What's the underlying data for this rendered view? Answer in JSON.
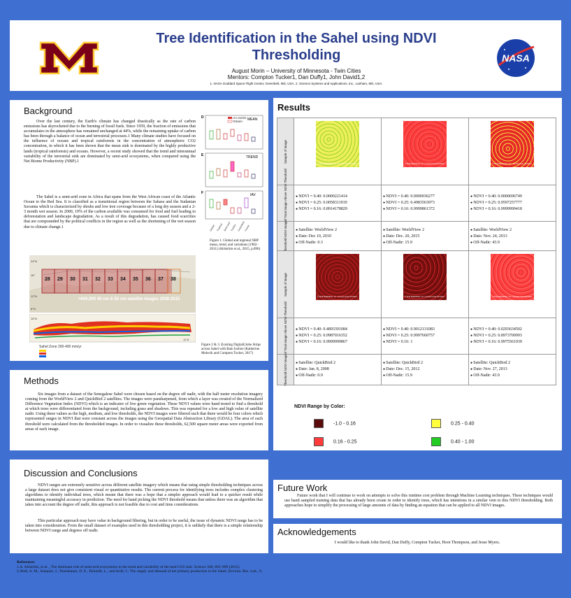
{
  "header": {
    "title": "Tree Identification in the Sahel using NDVI Thresholding",
    "author": "August Morin – University of Minnesota - Twin Cities",
    "mentors": "Mentors: Compton Tucker1, Dan Duffy1, John David1,2",
    "affiliations": "1.          NASA Goddard Space Flight Center, Greenbelt, MD, USA. 2. Science Systems and Applications, Inc., Lanham, MD, USA.",
    "logo_left": "M",
    "logo_right": "NASA"
  },
  "background": {
    "heading": "Background",
    "p1": "Over the last century, the Earth's climate has changed drastically as the rate of carbon emissions has skyrocketed due to the burning of fossil fuels. Since 1959, the fraction of emissions that accumulates in the atmosphere has remained unchanged at 44%, while the remaining uptake of carbon has been through a balance of ocean and terrestrial processes.1 Many climate studies have focused on the influence of oceans and tropical rainforests in the concentration of atmospheric CO2 concentration, in which it has been shown that the mean sink is dominated by the highly productive lands (tropical rainforests) and oceans. However, a recent study showed that the trend and interannual variability of the terrestrial sink are dominated by semi-arid ecosystems, when compared using the Net Biome Productivity (NBP).1",
    "p2": "The Sahel is a semi-arid zone in Africa that spans from the West African coast of the Atlantic Ocean to the Red Sea. It is classified as a transitional region between the Sahara and the Sudanian Savanna which is characterized by shrubs and low tree coverage because of a long dry season and a 2-3 month wet season. In 2000, 19% of the carbon available was consumed for food and fuel leading to deforestation and landscape degradation. As a result of this degradation, has caused food scarcities that are compounded by the political conflicts in the region as well as the shortening of the wet season due to climate change.1",
    "fig1_labels": {
      "d": "D",
      "mean": "MEAN",
      "e": "E",
      "trend": "TREND",
      "f": "F",
      "iav": "IAV",
      "leg1": "LPJ-GUESS",
      "leg2": "TRENDY"
    },
    "fig1_caption": "Figure 1. Global and regional NBP mean, trend, and variations (1982–2011) (Ahlström et al., 2015, p.896)",
    "strip_numbers": [
      "28",
      "29",
      "30",
      "31",
      "32",
      "33",
      "34",
      "35",
      "36",
      "37",
      "38"
    ],
    "strip_label": ">600,000 40 cm & 50 cm satellite images 2008-2015",
    "zone_label": "Sahel Zone 200-400 mm/yr",
    "lat_labels": [
      "24°N",
      "16°",
      "12°N",
      "8°N",
      "16°N",
      "12 N"
    ],
    "fig2_caption": "Figure 2 & 3. Existing DigitalGlobe Strips across Sahel with Rain Isoline (Katherine Melocik and Compton Tucker, 2017)"
  },
  "methods": {
    "heading": "Methods",
    "text": "Six images from a dataset of the Senegalese Sahel were chosen based on the degree off nadir, with the half meter resolution imagery coming from the WorldView 2 and QuickBird 2 satellites. The images were pansharpened, from which a layer was created of the Normalized Difference Vegetation Index (NDVI) which is an indicator of live green vegetation. These NDVI values were hand tested to find a threshold at which trees were differentiated from the background, including grass and shadows. This was repeated for a low and high value of satellite nadir. Using these values as the high, medium, and low thresholds, the NDVI images were filtered such that there would be four colors which represented ranges in NDVI that were constant across the images using the Geospatial Data Abstraction Library (GDAL). The area of each threshold were calculated from the thresholded images. In order to visualize these thresholds, 62,500 square meter areas were exported from areas of each image."
  },
  "discussion": {
    "heading": "Discussion and Conclusions",
    "p1": "NDVI ranges are extremely sensitive across different satellite imagery which means that using simple thresholding techniques across a large dataset does not give consistent visual or quantitative results. The current process for identifying trees includes complex clustering algorithms to identify individual trees, which meant that there was a hope that a simpler approach would lead to a quicker result while maintaining meaningful accuracy in prediction. The need for hand picking the NDVI threshold means that unless there was an algorithm that takes into account the degree off nadir, this approach is not feasible due to cost and time considerations",
    "p2": "This particular approach may have value in background filtering, but in order to be useful, the issue of dynamic NDVI range has to be taken into consideration. From the small dataset of examples used in this thresholding project, it is unlikely that there is a simple relationship between NDVI range and degrees off nadir."
  },
  "references": {
    "heading": "References",
    "items": [
      "1.A. Ahlström, et al. , The dominant role of semi-arid ecosystems in the trend and variability of the land CO2 sink. Science 348, 895–899 (2015).",
      "2.Abdi, A. M., Seaquist, J., Tenenbaum, D. E., Eklundh, L., and Ardö, J.: The supply and demand of net primary production in the Sahel, Environ. Res. Lett., 9,"
    ]
  },
  "results": {
    "heading": "Results",
    "row_labels": [
      "Sample of Image",
      "Percentage of Total Image Above NDVI Threshold",
      "Threshold NDVI Image",
      "Sample of Image",
      "Percentage of Total Image Above NDVI Threshold",
      "Threshold NDVI Image"
    ],
    "watermark": "© 2016 DigitalGlobe, Inc. Licensed under NextView",
    "percent_rows": [
      [
        [
          "NDVI = 0.40: 0.0000221414",
          "NDVI = 0.25: 0.0058311919",
          "NDVI = 0.16: 0.8914178829"
        ],
        [
          "NDVI = 0.40: 0.0000936277",
          "NDVI = 0.25: 0.4983563973",
          "NDVI = 0.16: 0.9999861372"
        ],
        [
          "NDVI = 0.40: 0.0000696749",
          "NDVI = 0.25: 0.9597257777",
          "NDVI = 0.16: 0.9999999418"
        ]
      ],
      [
        [
          "NDVI = 0.40: 0.4893391084",
          "NDVI = 0.25: 0.9987016352",
          "NDVI = 0.16: 0.9999999867"
        ],
        [
          "NDVI = 0.40: 0.9012131083",
          "NDVI = 0.25: 0.9997660757",
          "NDVI = 0.16: 1"
        ],
        [
          "NDVI = 0.40: 0.0293634502",
          "NDVI = 0.25: 0.8973700993",
          "NDVI = 0.16: 0.9975561939"
        ]
      ]
    ],
    "meta_rows": [
      [
        [
          "Satellite: WorldView 2",
          "Date: Dec 10, 2010",
          "Off-Nadir: 0.3"
        ],
        [
          "Satellite: WorldView 2",
          "Date: Dec. 20, 2015",
          "Off-Nadir: 15.9"
        ],
        [
          "Satellite: WorldView 2",
          "Date: Nov. 24, 2013",
          "Off-Nadir: 43.9"
        ]
      ],
      [
        [
          "Satellite: QuickBird 2",
          "Date: Jan. 8, 2008",
          "Off-Nadir:  0.9"
        ],
        [
          "Satellite: QuickBird 2",
          "Date: Dec. 15, 2012",
          "Off-Nadir: 15.9"
        ],
        [
          "Satellite: QuickBird 2",
          "Date: Nov. 27, 2013",
          "Off-Nadir: 43.9"
        ]
      ]
    ],
    "legend_title": "NDVI Range by Color:",
    "legend": [
      {
        "label": "-1.0 - 0.16",
        "color": "#5a0a0a"
      },
      {
        "label": "0.25 - 0.40",
        "color": "#ffff3c"
      },
      {
        "label": "0.16 - 0.25",
        "color": "#ff3b3b"
      },
      {
        "label": "0.40 - 1.00",
        "color": "#22cc22"
      }
    ]
  },
  "future": {
    "heading": "Future Work",
    "text": "Future work that I will continue to work on attempts to solve this runtime cost problem through Machine Learning techniques. These techniques would use hand sampled training data that has already been create in order to identify trees, which has intentions in a similar vein to this NDVI thresholding. Both approaches hope to simplify the processing of large amounts of data by finding an equation that can be applied to all NDVI images."
  },
  "acknowledgements": {
    "heading": "Acknowledgements",
    "text": "I would like to thank John David, Dan Duffy, Compton Tucker, Hoot Thompson, and Jesse Myers."
  }
}
